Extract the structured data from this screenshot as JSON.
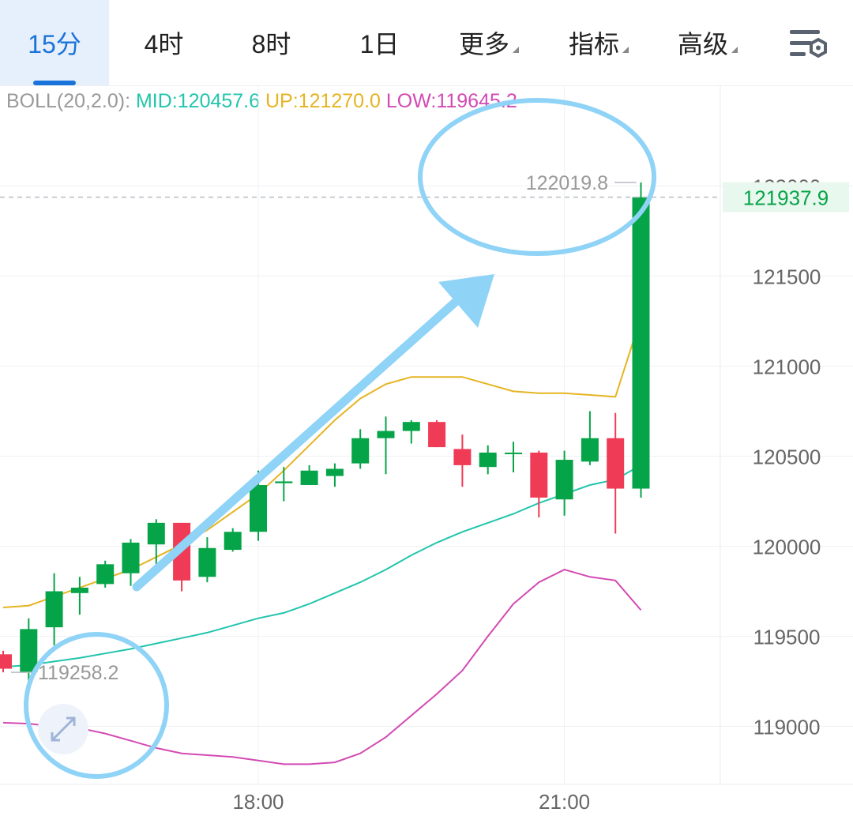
{
  "tabs": [
    {
      "label": "15分",
      "active": true,
      "dropdown": false
    },
    {
      "label": "4时",
      "active": false,
      "dropdown": false
    },
    {
      "label": "8时",
      "active": false,
      "dropdown": false
    },
    {
      "label": "1日",
      "active": false,
      "dropdown": false
    },
    {
      "label": "更多",
      "active": false,
      "dropdown": true
    },
    {
      "label": "指标",
      "active": false,
      "dropdown": true
    },
    {
      "label": "高级",
      "active": false,
      "dropdown": true
    }
  ],
  "settings_icon": "chart-settings-icon",
  "indicator": {
    "name": "BOLL(20,2.0):",
    "mid": "MID:120457.6",
    "up": "UP:121270.0",
    "low": "LOW:119645.2"
  },
  "colors": {
    "up": "#06a448",
    "down": "#ef3b55",
    "mid": "#22c5ac",
    "upper": "#e6b422",
    "lower": "#d34ab3",
    "accent": "#1a73d9",
    "annotation": "#8fd3f7"
  },
  "current_price": "121937.9",
  "high_label": "122019.8",
  "low_label": "119258.2",
  "expand_icon": "expand-arrows-icon",
  "chart_data": {
    "type": "candlestick",
    "ylim": [
      118700,
      122400
    ],
    "yticks": [
      122000,
      121500,
      121000,
      120500,
      120000,
      119500,
      119000
    ],
    "ytick_labels": [
      "122000",
      "121500",
      "121000",
      "120500",
      "120000",
      "119500",
      "119000"
    ],
    "xtick_labels": [
      "18:00",
      "21:00"
    ],
    "xtick_index": [
      10,
      22
    ],
    "candles": [
      {
        "o": 119400,
        "h": 119420,
        "l": 119300,
        "c": 119320
      },
      {
        "o": 119300,
        "h": 119600,
        "l": 119250,
        "c": 119540
      },
      {
        "o": 119550,
        "h": 119850,
        "l": 119450,
        "c": 119750
      },
      {
        "o": 119740,
        "h": 119830,
        "l": 119620,
        "c": 119770
      },
      {
        "o": 119790,
        "h": 119920,
        "l": 119770,
        "c": 119900
      },
      {
        "o": 119850,
        "h": 120040,
        "l": 119780,
        "c": 120020
      },
      {
        "o": 120010,
        "h": 120150,
        "l": 119900,
        "c": 120130
      },
      {
        "o": 120130,
        "h": 120130,
        "l": 119750,
        "c": 119810
      },
      {
        "o": 119830,
        "h": 120050,
        "l": 119800,
        "c": 119990
      },
      {
        "o": 119980,
        "h": 120100,
        "l": 119970,
        "c": 120080
      },
      {
        "o": 120080,
        "h": 120420,
        "l": 120030,
        "c": 120340
      },
      {
        "o": 120350,
        "h": 120440,
        "l": 120250,
        "c": 120360
      },
      {
        "o": 120340,
        "h": 120450,
        "l": 120340,
        "c": 120420
      },
      {
        "o": 120390,
        "h": 120460,
        "l": 120330,
        "c": 120430
      },
      {
        "o": 120460,
        "h": 120650,
        "l": 120430,
        "c": 120600
      },
      {
        "o": 120600,
        "h": 120720,
        "l": 120400,
        "c": 120640
      },
      {
        "o": 120640,
        "h": 120700,
        "l": 120570,
        "c": 120690
      },
      {
        "o": 120690,
        "h": 120700,
        "l": 120550,
        "c": 120550
      },
      {
        "o": 120540,
        "h": 120620,
        "l": 120330,
        "c": 120450
      },
      {
        "o": 120440,
        "h": 120560,
        "l": 120400,
        "c": 120520
      },
      {
        "o": 120520,
        "h": 120580,
        "l": 120410,
        "c": 120520
      },
      {
        "o": 120520,
        "h": 120530,
        "l": 120160,
        "c": 120270
      },
      {
        "o": 120260,
        "h": 120530,
        "l": 120170,
        "c": 120480
      },
      {
        "o": 120470,
        "h": 120750,
        "l": 120450,
        "c": 120600
      },
      {
        "o": 120600,
        "h": 120740,
        "l": 120070,
        "c": 120320
      },
      {
        "o": 120320,
        "h": 122019.8,
        "l": 120270,
        "c": 121937.9
      }
    ],
    "mid": [
      119330,
      119340,
      119360,
      119380,
      119405,
      119430,
      119460,
      119490,
      119520,
      119560,
      119600,
      119630,
      119680,
      119740,
      119800,
      119870,
      119950,
      120020,
      120080,
      120130,
      120180,
      120240,
      120290,
      120340,
      120370,
      120450
    ],
    "upper": [
      119660,
      119670,
      119720,
      119770,
      119820,
      119870,
      119940,
      120010,
      120090,
      120190,
      120290,
      120420,
      120560,
      120700,
      120820,
      120900,
      120940,
      120940,
      120940,
      120900,
      120860,
      120850,
      120850,
      120840,
      120830,
      121270
    ],
    "lower": [
      119020,
      119015,
      119000,
      118990,
      118960,
      118920,
      118880,
      118850,
      118840,
      118830,
      118810,
      118790,
      118790,
      118800,
      118850,
      118940,
      119060,
      119180,
      119310,
      119500,
      119680,
      119800,
      119870,
      119830,
      119810,
      119645
    ]
  }
}
